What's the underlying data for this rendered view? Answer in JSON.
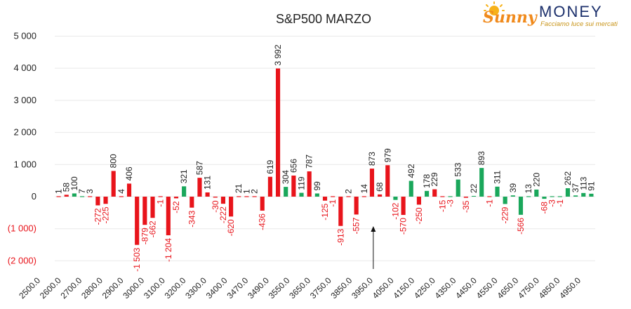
{
  "logo": {
    "brand_sunny": "Sunny",
    "brand_money": "MONEY",
    "tagline": "Facciamo luce sui mercati"
  },
  "colors": {
    "positive": "#1aa75b",
    "negative": "#e8141b",
    "text": "#222222",
    "grid": "#e9e9e9"
  },
  "chart_data": {
    "type": "bar",
    "title": "S&P500 MARZO",
    "xlabel": "",
    "ylabel": "",
    "ylim": [
      -2000,
      5000
    ],
    "grid": true,
    "x_tick_labels": [
      "2500.0",
      "2600.0",
      "2700.0",
      "2800.0",
      "2900.0",
      "3000.0",
      "3100.0",
      "3200.0",
      "3300.0",
      "3400.0",
      "3470.0",
      "3490.0",
      "3550.0",
      "3650.0",
      "3750.0",
      "3850.0",
      "3950.0",
      "4050.0",
      "4150.0",
      "4250.0",
      "4350.0",
      "4450.0",
      "4550.0",
      "4650.0",
      "4750.0",
      "4850.0",
      "4950.0"
    ],
    "y_tick_labels": [
      {
        "value": 5000,
        "label": "5 000",
        "negative": false
      },
      {
        "value": 4000,
        "label": "4 000",
        "negative": false
      },
      {
        "value": 3000,
        "label": "3 000",
        "negative": false
      },
      {
        "value": 2000,
        "label": "2 000",
        "negative": false
      },
      {
        "value": 1000,
        "label": "1 000",
        "negative": false
      },
      {
        "value": 0,
        "label": "0",
        "negative": false
      },
      {
        "value": -1000,
        "label": "(1 000)",
        "negative": true
      },
      {
        "value": -2000,
        "label": "(2 000)",
        "negative": true
      }
    ],
    "values": [
      1,
      58,
      100,
      7,
      3,
      -272,
      -225,
      800,
      4,
      406,
      -1503,
      -879,
      -662,
      -1,
      -1204,
      -52,
      321,
      -343,
      587,
      131,
      -30,
      -222,
      -620,
      21,
      1,
      2,
      -436,
      619,
      3992,
      304,
      656,
      119,
      787,
      99,
      -125,
      -1,
      -913,
      2,
      -557,
      14,
      873,
      68,
      979,
      -102,
      -570,
      492,
      -250,
      178,
      229,
      -15,
      -3,
      533,
      -35,
      22,
      893,
      -1,
      311,
      -229,
      39,
      -566,
      13,
      220,
      -68,
      -3,
      -1,
      262,
      37,
      113,
      91
    ],
    "bar_colors": [
      "neg",
      "neg",
      "pos",
      "pos",
      "neg",
      "neg",
      "neg",
      "neg",
      "neg",
      "neg",
      "neg",
      "neg",
      "neg",
      "neg",
      "neg",
      "neg",
      "pos",
      "neg",
      "neg",
      "neg",
      "neg",
      "neg",
      "neg",
      "neg",
      "neg",
      "neg",
      "neg",
      "neg",
      "neg",
      "pos",
      "neg",
      "pos",
      "neg",
      "pos",
      "neg",
      "neg",
      "neg",
      "neg",
      "neg",
      "neg",
      "neg",
      "neg",
      "neg",
      "pos",
      "neg",
      "pos",
      "neg",
      "pos",
      "neg",
      "neg",
      "pos",
      "pos",
      "neg",
      "pos",
      "pos",
      "neg",
      "pos",
      "pos",
      "pos",
      "pos",
      "pos",
      "pos",
      "pos",
      "pos",
      "pos",
      "pos",
      "pos",
      "pos",
      "pos"
    ],
    "value_labels": [
      "1",
      "58",
      "100",
      "7",
      "3",
      "-272",
      "-225",
      "800",
      "4",
      "406",
      "-1 503",
      "-879",
      "-662",
      "-1",
      "-1 204",
      "-52",
      "321",
      "-343",
      "587",
      "131",
      "-30",
      "-222",
      "-620",
      "21",
      "1",
      "2",
      "-436",
      "619",
      "3 992",
      "304",
      "656",
      "119",
      "787",
      "99",
      "-125",
      "-1",
      "-913",
      "2",
      "-557",
      "14",
      "873",
      "68",
      "979",
      "-102",
      "-570",
      "492",
      "-250",
      "178",
      "229",
      "-15",
      "-3",
      "533",
      "-35",
      "22",
      "893",
      "-1",
      "311",
      "-229",
      "39",
      "-566",
      "13",
      "220",
      "-68",
      "-3",
      "-1",
      "262",
      "37",
      "113",
      "91"
    ],
    "annotation": {
      "type": "arrow",
      "near_tick": "3950.0",
      "direction": "up"
    }
  }
}
